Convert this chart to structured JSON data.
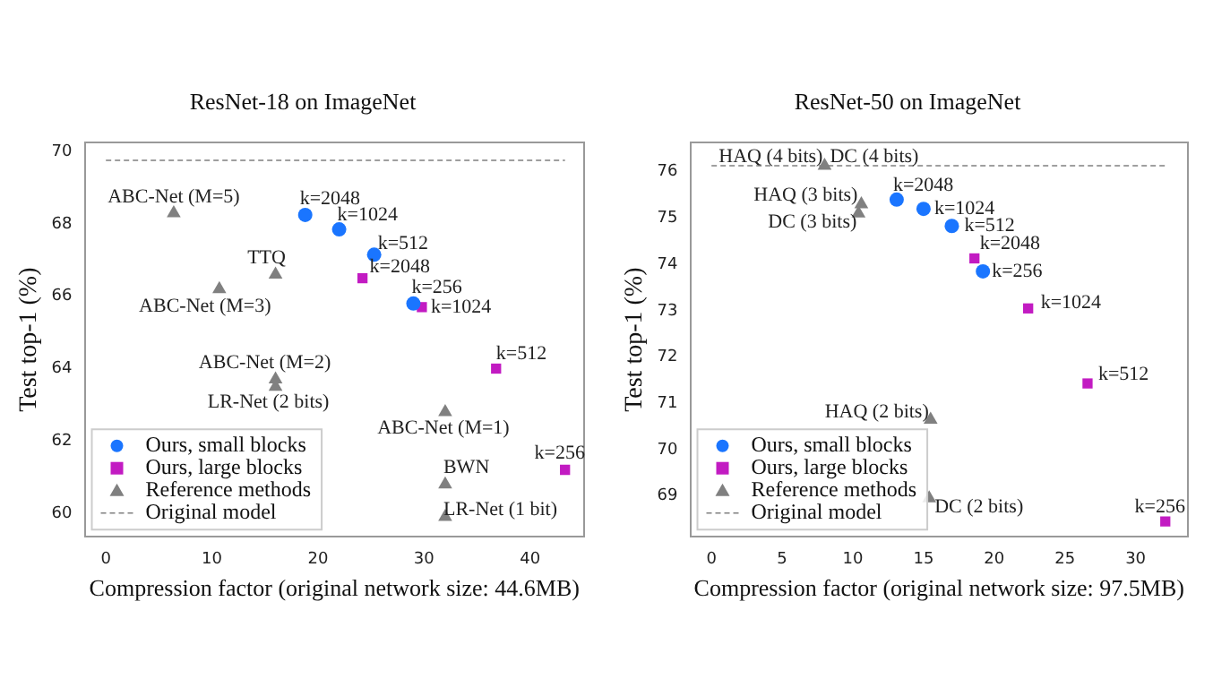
{
  "chart_data": [
    {
      "type": "scatter",
      "title": "ResNet-18 on ImageNet",
      "xlabel": "Compression factor (original network size: 44.6MB)",
      "ylabel": "Test top-1 (%)",
      "xlim": [
        -2,
        45.1
      ],
      "ylim": [
        59.35,
        70.25
      ],
      "xticks": [
        0,
        10,
        20,
        30,
        40
      ],
      "yticks": [
        60,
        62,
        64,
        66,
        68,
        70
      ],
      "grid": false,
      "legend": "bottom left",
      "series": [
        {
          "name": "Ours, small blocks",
          "color": "#1a75ff",
          "marker": "circle",
          "x": [
            18.8,
            22,
            25.3,
            29
          ],
          "values": [
            68.25,
            67.85,
            67.15,
            65.8
          ]
        },
        {
          "name": "Ours, large blocks",
          "color": "#c21bc2",
          "marker": "square",
          "x": [
            24.2,
            29.8,
            36.8,
            43.3
          ],
          "values": [
            66.5,
            65.7,
            64.0,
            61.2
          ]
        },
        {
          "name": "Reference methods",
          "color": "#808080",
          "marker": "triangle",
          "x": [
            6.4,
            10.7,
            16,
            16,
            16,
            32,
            32,
            32
          ],
          "values": [
            68.3,
            66.2,
            66.6,
            63.7,
            63.5,
            62.8,
            60.8,
            59.9
          ]
        },
        {
          "name": "Original model",
          "type": "line",
          "color": "#808080",
          "marker": "none",
          "line_style": "dashed",
          "x": [
            0,
            43.3
          ],
          "values": [
            69.76,
            69.76
          ]
        }
      ],
      "annotations": [
        {
          "text": "ABC-Net (M=5)",
          "x": 6.4,
          "y": 68.3
        },
        {
          "text": "ABC-Net (M=3)",
          "x": 10.7,
          "y": 66.2
        },
        {
          "text": "TTQ",
          "x": 16,
          "y": 66.6
        },
        {
          "text": "ABC-Net (M=2)",
          "x": 16,
          "y": 63.7
        },
        {
          "text": "LR-Net (2 bits)",
          "x": 16,
          "y": 63.5
        },
        {
          "text": "ABC-Net (M=1)",
          "x": 32,
          "y": 62.8
        },
        {
          "text": "BWN",
          "x": 32,
          "y": 60.8
        },
        {
          "text": "LR-Net (1 bit)",
          "x": 32,
          "y": 59.9
        },
        {
          "text": "k=2048",
          "x": 18.8,
          "y": 68.25
        },
        {
          "text": "k=1024",
          "x": 22,
          "y": 67.85
        },
        {
          "text": "k=512",
          "x": 25.3,
          "y": 67.15
        },
        {
          "text": "k=256",
          "x": 29,
          "y": 65.8
        },
        {
          "text": "k=2048",
          "x": 24.2,
          "y": 66.5
        },
        {
          "text": "k=1024",
          "x": 29.8,
          "y": 65.7
        },
        {
          "text": "k=512",
          "x": 36.8,
          "y": 64.0
        },
        {
          "text": "k=256",
          "x": 43.3,
          "y": 61.2
        }
      ]
    },
    {
      "type": "scatter",
      "title": "ResNet-50 on ImageNet",
      "xlabel": "Compression factor (original network size: 97.5MB)",
      "ylabel": "Test top-1 (%)",
      "xlim": [
        -1.5,
        33.7
      ],
      "ylim": [
        68.12,
        76.63
      ],
      "xticks": [
        0,
        5,
        10,
        15,
        20,
        25,
        30
      ],
      "yticks": [
        69,
        70,
        71,
        72,
        73,
        74,
        75,
        76
      ],
      "grid": false,
      "legend": "bottom left",
      "series": [
        {
          "name": "Ours, small blocks",
          "color": "#1a75ff",
          "marker": "circle",
          "x": [
            13.1,
            15.0,
            17.0,
            19.2
          ],
          "values": [
            75.4,
            75.2,
            74.83,
            73.85
          ]
        },
        {
          "name": "Ours, large blocks",
          "color": "#c21bc2",
          "marker": "square",
          "x": [
            18.6,
            22.4,
            26.6,
            32.1
          ],
          "values": [
            74.13,
            73.05,
            71.43,
            68.45
          ]
        },
        {
          "name": "Reference methods",
          "color": "#808080",
          "marker": "triangle",
          "x": [
            8.0,
            10.6,
            10.4,
            15.5,
            15.4
          ],
          "values": [
            76.13,
            75.3,
            75.1,
            70.65,
            68.95
          ]
        },
        {
          "name": "Original model",
          "type": "line",
          "color": "#808080",
          "marker": "none",
          "line_style": "dashed",
          "x": [
            0,
            32.1
          ],
          "values": [
            76.13,
            76.13
          ]
        }
      ],
      "annotations": [
        {
          "text": "HAQ (4 bits)",
          "x": 8.0,
          "y": 76.13
        },
        {
          "text": "DC (4 bits)",
          "x": 8.0,
          "y": 76.13
        },
        {
          "text": "HAQ (3 bits)",
          "x": 10.6,
          "y": 75.3
        },
        {
          "text": "DC (3 bits)",
          "x": 10.4,
          "y": 75.1
        },
        {
          "text": "HAQ (2 bits)",
          "x": 15.5,
          "y": 70.65
        },
        {
          "text": "DC (2 bits)",
          "x": 15.4,
          "y": 68.95
        },
        {
          "text": "k=2048",
          "x": 13.1,
          "y": 75.4
        },
        {
          "text": "k=1024",
          "x": 15.0,
          "y": 75.2
        },
        {
          "text": "k=512",
          "x": 17.0,
          "y": 74.83
        },
        {
          "text": "k=256",
          "x": 19.2,
          "y": 73.85
        },
        {
          "text": "k=2048",
          "x": 18.6,
          "y": 74.13
        },
        {
          "text": "k=1024",
          "x": 22.4,
          "y": 73.05
        },
        {
          "text": "k=512",
          "x": 26.6,
          "y": 71.43
        },
        {
          "text": "k=256",
          "x": 32.1,
          "y": 68.45
        }
      ]
    }
  ]
}
